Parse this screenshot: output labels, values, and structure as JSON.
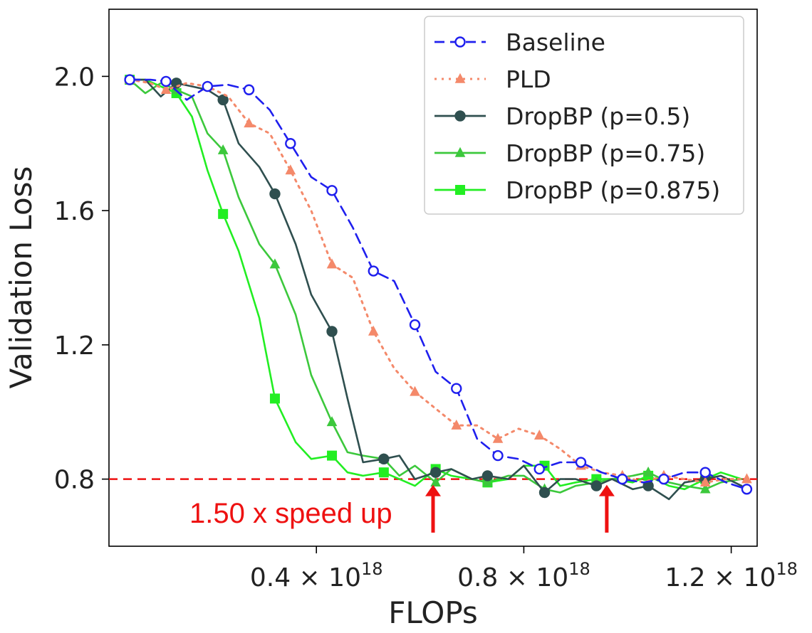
{
  "chart_data": {
    "type": "line",
    "title": "",
    "xlabel": "FLOPs",
    "ylabel": "Validation Loss",
    "xlim": [
      0.0,
      1.25
    ],
    "ylim": [
      0.6,
      2.2
    ],
    "x_unit": "1e18",
    "yticks": [
      {
        "value": 2.0,
        "label": "2.0"
      },
      {
        "value": 1.6,
        "label": "1.6"
      },
      {
        "value": 1.2,
        "label": "1.2"
      },
      {
        "value": 0.8,
        "label": "0.8"
      }
    ],
    "xticks": [
      {
        "value": 0.4,
        "mantissa": "0.4",
        "times": "×",
        "base": "10",
        "exp": "18"
      },
      {
        "value": 0.8,
        "mantissa": "0.8",
        "times": "×",
        "base": "10",
        "exp": "18"
      },
      {
        "value": 1.2,
        "mantissa": "1.2",
        "times": "×",
        "base": "10",
        "exp": "18"
      }
    ],
    "grid": false,
    "legend_position": "top-right",
    "series": [
      {
        "name": "Baseline",
        "color": "#1f1fee",
        "dash": "dashed",
        "marker": "circle-open",
        "x": [
          0.04,
          0.08,
          0.11,
          0.15,
          0.19,
          0.23,
          0.27,
          0.31,
          0.35,
          0.39,
          0.43,
          0.47,
          0.51,
          0.55,
          0.59,
          0.63,
          0.67,
          0.71,
          0.75,
          0.79,
          0.83,
          0.87,
          0.91,
          0.95,
          0.99,
          1.03,
          1.07,
          1.11,
          1.15,
          1.19,
          1.23
        ],
        "values": [
          1.99,
          1.99,
          1.985,
          1.93,
          1.97,
          1.975,
          1.96,
          1.9,
          1.8,
          1.7,
          1.66,
          1.55,
          1.42,
          1.39,
          1.26,
          1.12,
          1.07,
          0.92,
          0.87,
          0.86,
          0.83,
          0.85,
          0.85,
          0.82,
          0.8,
          0.79,
          0.8,
          0.82,
          0.82,
          0.79,
          0.77
        ],
        "marker_every": 2
      },
      {
        "name": "PLD",
        "color": "#f4896a",
        "dash": "dotted",
        "marker": "triangle",
        "x": [
          0.04,
          0.08,
          0.11,
          0.15,
          0.19,
          0.23,
          0.27,
          0.31,
          0.35,
          0.39,
          0.43,
          0.47,
          0.51,
          0.55,
          0.59,
          0.63,
          0.67,
          0.71,
          0.75,
          0.79,
          0.83,
          0.87,
          0.91,
          0.95,
          0.99,
          1.03,
          1.07,
          1.11,
          1.15,
          1.19,
          1.23
        ],
        "values": [
          1.99,
          1.98,
          1.96,
          1.98,
          1.97,
          1.94,
          1.86,
          1.83,
          1.72,
          1.6,
          1.44,
          1.4,
          1.24,
          1.13,
          1.06,
          1.01,
          0.96,
          0.96,
          0.92,
          0.95,
          0.93,
          0.89,
          0.84,
          0.82,
          0.81,
          0.79,
          0.81,
          0.8,
          0.79,
          0.8,
          0.8
        ],
        "marker_every": 2
      },
      {
        "name": "DropBP (p=0.5)",
        "color": "#2f4f4f",
        "dash": "solid",
        "marker": "circle",
        "x": [
          0.04,
          0.07,
          0.1,
          0.13,
          0.16,
          0.19,
          0.22,
          0.25,
          0.29,
          0.32,
          0.36,
          0.39,
          0.43,
          0.46,
          0.49,
          0.53,
          0.56,
          0.59,
          0.63,
          0.66,
          0.7,
          0.73,
          0.77,
          0.8,
          0.84,
          0.87,
          0.9,
          0.94,
          0.97,
          1.01,
          1.04,
          1.08,
          1.11,
          1.15,
          1.18,
          1.22
        ],
        "values": [
          1.99,
          1.99,
          1.94,
          1.98,
          1.97,
          1.96,
          1.93,
          1.8,
          1.73,
          1.65,
          1.5,
          1.35,
          1.24,
          1.04,
          0.85,
          0.86,
          0.87,
          0.8,
          0.82,
          0.83,
          0.8,
          0.81,
          0.8,
          0.84,
          0.76,
          0.8,
          0.8,
          0.78,
          0.8,
          0.77,
          0.78,
          0.74,
          0.79,
          0.8,
          0.81,
          0.78
        ],
        "marker_every": 3
      },
      {
        "name": "DropBP (p=0.75)",
        "color": "#3cc83c",
        "dash": "solid",
        "marker": "triangle",
        "x": [
          0.04,
          0.07,
          0.1,
          0.13,
          0.16,
          0.19,
          0.22,
          0.25,
          0.29,
          0.32,
          0.36,
          0.39,
          0.43,
          0.46,
          0.49,
          0.53,
          0.56,
          0.59,
          0.63,
          0.66,
          0.7,
          0.73,
          0.77,
          0.8,
          0.84,
          0.87,
          0.9,
          0.94,
          0.97,
          1.01,
          1.04,
          1.08,
          1.11,
          1.15,
          1.18,
          1.22
        ],
        "values": [
          1.99,
          1.95,
          1.98,
          1.96,
          1.94,
          1.83,
          1.78,
          1.64,
          1.5,
          1.44,
          1.29,
          1.11,
          0.97,
          0.88,
          0.87,
          0.86,
          0.81,
          0.84,
          0.79,
          0.83,
          0.8,
          0.79,
          0.81,
          0.81,
          0.77,
          0.76,
          0.78,
          0.79,
          0.8,
          0.81,
          0.82,
          0.79,
          0.78,
          0.77,
          0.79,
          0.8
        ],
        "marker_every": 3
      },
      {
        "name": "DropBP (p=0.875)",
        "color": "#22ee22",
        "dash": "solid",
        "marker": "square",
        "x": [
          0.04,
          0.07,
          0.1,
          0.13,
          0.16,
          0.19,
          0.22,
          0.25,
          0.29,
          0.32,
          0.36,
          0.39,
          0.43,
          0.46,
          0.49,
          0.53,
          0.56,
          0.59,
          0.63,
          0.66,
          0.7,
          0.73,
          0.77,
          0.8,
          0.84,
          0.87,
          0.9,
          0.94,
          0.97,
          1.01,
          1.04,
          1.08,
          1.11,
          1.15,
          1.18,
          1.22
        ],
        "values": [
          1.99,
          1.99,
          1.97,
          1.95,
          1.88,
          1.72,
          1.59,
          1.48,
          1.28,
          1.04,
          0.91,
          0.86,
          0.87,
          0.82,
          0.81,
          0.82,
          0.8,
          0.78,
          0.83,
          0.81,
          0.8,
          0.79,
          0.8,
          0.84,
          0.84,
          0.78,
          0.79,
          0.8,
          0.8,
          0.79,
          0.81,
          0.78,
          0.77,
          0.8,
          0.82,
          0.8
        ],
        "marker_every": 3
      }
    ],
    "reference_line": {
      "y": 0.8,
      "color": "#ee1111",
      "dash": "dashed"
    },
    "annotations": [
      {
        "text": "1.50 x speed up",
        "color": "#ee1111",
        "x_data": 0.32,
        "y_data": 0.705
      },
      {
        "type": "arrow",
        "color": "#ee1111",
        "x_data": 0.625,
        "y_from": 0.7,
        "y_to": 0.8
      },
      {
        "type": "arrow",
        "color": "#ee1111",
        "x_data": 0.96,
        "y_from": 0.7,
        "y_to": 0.8
      }
    ]
  }
}
